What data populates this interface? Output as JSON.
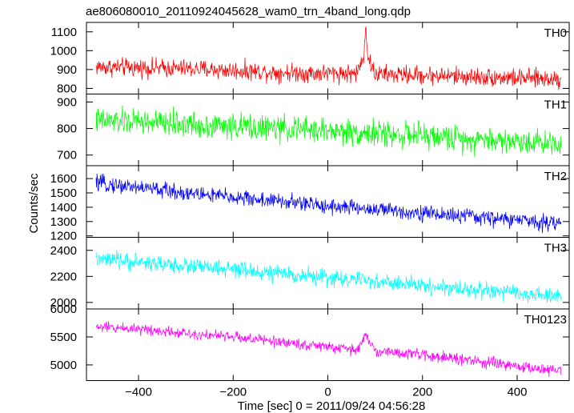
{
  "chart_data": {
    "type": "line",
    "title": "ae806080010_20110924045628_wam0_trn_4band_long.qdp",
    "xlabel": "Time [sec] 0 = 2011/09/24 04:56:28",
    "ylabel": "Counts/sec",
    "xlim": [
      -510,
      510
    ],
    "x_ticks": [
      -400,
      -200,
      0,
      200,
      400
    ],
    "grid": false,
    "panels": [
      {
        "name": "TH0",
        "color": "#ff0000",
        "ylim": [
          770,
          1150
        ],
        "y_ticks": [
          800,
          900,
          1000,
          1100
        ],
        "x": [
          -500,
          -400,
          -300,
          -200,
          -100,
          0,
          60,
          75,
          80,
          85,
          100,
          200,
          300,
          400,
          490
        ],
        "y": [
          915,
          910,
          905,
          895,
          885,
          880,
          880,
          955,
          1140,
          960,
          875,
          870,
          862,
          855,
          850
        ],
        "noise": 42
      },
      {
        "name": "TH1",
        "color": "#00ff00",
        "ylim": [
          660,
          930
        ],
        "y_ticks": [
          700,
          800,
          900
        ],
        "x": [
          -500,
          -400,
          -300,
          -200,
          -100,
          0,
          100,
          200,
          300,
          400,
          490
        ],
        "y": [
          828,
          825,
          815,
          808,
          800,
          792,
          782,
          772,
          762,
          752,
          748
        ],
        "noise": 42
      },
      {
        "name": "TH2",
        "color": "#0000ff",
        "ylim": [
          1190,
          1690
        ],
        "y_ticks": [
          1200,
          1300,
          1400,
          1500,
          1600
        ],
        "x": [
          -500,
          -400,
          -300,
          -200,
          -100,
          0,
          100,
          200,
          300,
          400,
          490
        ],
        "y": [
          1570,
          1540,
          1500,
          1470,
          1440,
          1410,
          1385,
          1360,
          1335,
          1310,
          1290
        ],
        "noise": 48
      },
      {
        "name": "TH3",
        "color": "#00ffff",
        "ylim": [
          1950,
          2500
        ],
        "y_ticks": [
          2000,
          2200,
          2400
        ],
        "x": [
          -500,
          -400,
          -300,
          -200,
          -100,
          0,
          100,
          200,
          300,
          400,
          490
        ],
        "y": [
          2330,
          2310,
          2280,
          2250,
          2220,
          2190,
          2160,
          2130,
          2100,
          2070,
          2040
        ],
        "noise": 55
      },
      {
        "name": "TH0123",
        "color": "#ff00ff",
        "ylim": [
          4720,
          6000
        ],
        "y_ticks": [
          5000,
          5500,
          6000
        ],
        "x": [
          -500,
          -400,
          -300,
          -200,
          -100,
          0,
          60,
          80,
          100,
          200,
          300,
          400,
          490
        ],
        "y": [
          5680,
          5650,
          5570,
          5500,
          5410,
          5320,
          5260,
          5520,
          5250,
          5180,
          5080,
          4970,
          4900
        ],
        "noise": 85
      }
    ]
  }
}
